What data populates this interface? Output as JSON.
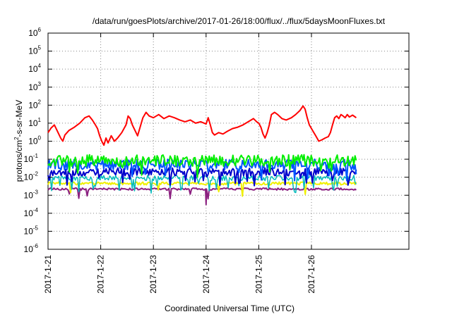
{
  "chart_data": {
    "type": "line",
    "title": "/data/run/goesPlots/archive/2017-01-26/18:00/flux/../flux/5daysMoonFluxes.txt",
    "xlabel": "Coordinated Universal Time (UTC)",
    "ylabel": {
      "prefix": "protons/cm",
      "sup": "2",
      "suffix": "-s-sr-MeV"
    },
    "xlim": [
      0,
      6.85
    ],
    "ylim": [
      1e-06,
      1000000.0
    ],
    "yscale": "log",
    "grid": true,
    "legend": "none",
    "x_ticks": [
      {
        "value": 0,
        "label": "2017-1-21"
      },
      {
        "value": 1,
        "label": "2017-1-22"
      },
      {
        "value": 2,
        "label": "2017-1-23"
      },
      {
        "value": 3,
        "label": "2017-1-24"
      },
      {
        "value": 4,
        "label": "2017-1-25"
      },
      {
        "value": 5,
        "label": "2017-1-26"
      }
    ],
    "y_ticks": [
      {
        "value": 1e-06,
        "base": "10",
        "exp": "-6"
      },
      {
        "value": 1e-05,
        "base": "10",
        "exp": "-5"
      },
      {
        "value": 0.0001,
        "base": "10",
        "exp": "-4"
      },
      {
        "value": 0.001,
        "base": "10",
        "exp": "-3"
      },
      {
        "value": 0.01,
        "base": "10",
        "exp": "-2"
      },
      {
        "value": 0.1,
        "base": "10",
        "exp": "-1"
      },
      {
        "value": 1,
        "base": "10",
        "exp": "0"
      },
      {
        "value": 10,
        "base": "10",
        "exp": "1"
      },
      {
        "value": 100,
        "base": "10",
        "exp": "2"
      },
      {
        "value": 1000,
        "base": "10",
        "exp": "3"
      },
      {
        "value": 10000,
        "base": "10",
        "exp": "4"
      },
      {
        "value": 100000,
        "base": "10",
        "exp": "5"
      },
      {
        "value": 1000000,
        "base": "10",
        "exp": "6"
      }
    ],
    "series": [
      {
        "color": "#ff0000",
        "width": 2,
        "values": [
          [
            0.0,
            3.0
          ],
          [
            0.06,
            5.5
          ],
          [
            0.12,
            8.0
          ],
          [
            0.18,
            3.5
          ],
          [
            0.24,
            1.5
          ],
          [
            0.28,
            1.0
          ],
          [
            0.32,
            2.2
          ],
          [
            0.4,
            4.0
          ],
          [
            0.5,
            6.0
          ],
          [
            0.6,
            10.0
          ],
          [
            0.7,
            20.0
          ],
          [
            0.78,
            25.0
          ],
          [
            0.84,
            15.0
          ],
          [
            0.9,
            8.0
          ],
          [
            0.94,
            5.0
          ],
          [
            0.98,
            2.0
          ],
          [
            1.02,
            1.0
          ],
          [
            1.06,
            0.6
          ],
          [
            1.1,
            1.5
          ],
          [
            1.14,
            0.8
          ],
          [
            1.2,
            2.0
          ],
          [
            1.26,
            1.0
          ],
          [
            1.32,
            1.5
          ],
          [
            1.4,
            3.0
          ],
          [
            1.48,
            8.0
          ],
          [
            1.52,
            25.0
          ],
          [
            1.56,
            18.0
          ],
          [
            1.6,
            8.0
          ],
          [
            1.66,
            3.5
          ],
          [
            1.7,
            2.0
          ],
          [
            1.74,
            5.0
          ],
          [
            1.8,
            20.0
          ],
          [
            1.86,
            40.0
          ],
          [
            1.92,
            25.0
          ],
          [
            2.0,
            20.0
          ],
          [
            2.1,
            30.0
          ],
          [
            2.2,
            18.0
          ],
          [
            2.3,
            25.0
          ],
          [
            2.4,
            20.0
          ],
          [
            2.5,
            15.0
          ],
          [
            2.6,
            12.0
          ],
          [
            2.7,
            15.0
          ],
          [
            2.8,
            10.0
          ],
          [
            2.9,
            12.0
          ],
          [
            3.0,
            9.0
          ],
          [
            3.04,
            20.0
          ],
          [
            3.08,
            8.0
          ],
          [
            3.12,
            3.0
          ],
          [
            3.16,
            2.2
          ],
          [
            3.24,
            3.0
          ],
          [
            3.32,
            2.5
          ],
          [
            3.4,
            3.5
          ],
          [
            3.5,
            5.0
          ],
          [
            3.6,
            6.0
          ],
          [
            3.7,
            8.0
          ],
          [
            3.8,
            12.0
          ],
          [
            3.9,
            18.0
          ],
          [
            3.96,
            12.0
          ],
          [
            4.0,
            10.0
          ],
          [
            4.04,
            6.0
          ],
          [
            4.08,
            2.5
          ],
          [
            4.12,
            1.5
          ],
          [
            4.16,
            3.0
          ],
          [
            4.2,
            8.0
          ],
          [
            4.24,
            30.0
          ],
          [
            4.3,
            40.0
          ],
          [
            4.36,
            30.0
          ],
          [
            4.44,
            18.0
          ],
          [
            4.52,
            15.0
          ],
          [
            4.62,
            20.0
          ],
          [
            4.7,
            30.0
          ],
          [
            4.78,
            50.0
          ],
          [
            4.84,
            90.0
          ],
          [
            4.88,
            60.0
          ],
          [
            4.92,
            20.0
          ],
          [
            4.96,
            8.0
          ],
          [
            5.02,
            4.0
          ],
          [
            5.08,
            2.0
          ],
          [
            5.14,
            1.0
          ],
          [
            5.2,
            1.2
          ],
          [
            5.26,
            1.5
          ],
          [
            5.32,
            1.8
          ],
          [
            5.36,
            3.0
          ],
          [
            5.4,
            8.0
          ],
          [
            5.44,
            20.0
          ],
          [
            5.48,
            25.0
          ],
          [
            5.52,
            18.0
          ],
          [
            5.56,
            30.0
          ],
          [
            5.6,
            25.0
          ],
          [
            5.64,
            20.0
          ],
          [
            5.68,
            30.0
          ],
          [
            5.72,
            22.0
          ],
          [
            5.78,
            28.0
          ],
          [
            5.85,
            20.0
          ]
        ]
      },
      {
        "color": "#00ee00",
        "width": 2,
        "base": 0.085,
        "amplitude": 0.32,
        "spikes": 2
      },
      {
        "color": "#0055ff",
        "width": 2,
        "base": 0.05,
        "amplitude": 0.3,
        "spikes": 3
      },
      {
        "color": "#0000cc",
        "width": 2,
        "base": 0.02,
        "amplitude": 0.22,
        "spikes": 5
      },
      {
        "color": "#00bbbb",
        "width": 1.5,
        "base": 0.009,
        "amplitude": 0.15,
        "spikes": 5
      },
      {
        "color": "#f0f000",
        "width": 2,
        "base": 0.0045,
        "amplitude": 0.08,
        "spikes": 1
      },
      {
        "color": "#8b2080",
        "width": 2,
        "base": 0.0022,
        "amplitude": 0.06,
        "spikes": 1,
        "special_dip": {
          "x": 3.0,
          "value": 0.0003
        }
      }
    ]
  }
}
